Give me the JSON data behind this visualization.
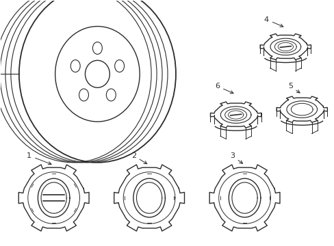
{
  "bg_color": "#ffffff",
  "line_color": "#2a2a2a",
  "line_width": 1.0,
  "fig_w": 4.89,
  "fig_h": 3.6,
  "dpi": 100
}
